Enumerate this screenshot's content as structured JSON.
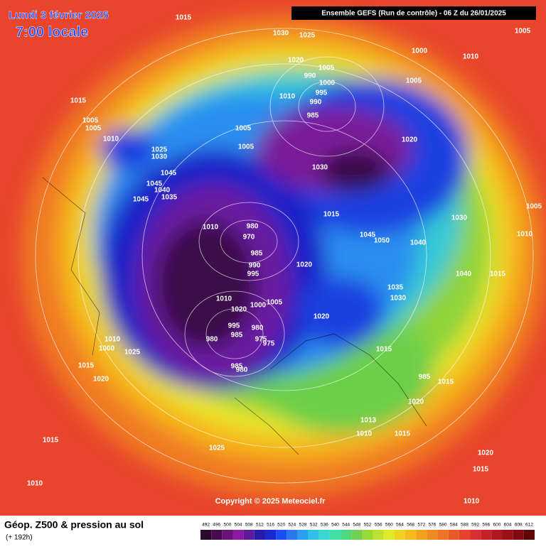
{
  "header": {
    "date": "Lundi 3 février 2025",
    "time": "7:00 locale",
    "run": "Ensemble GEFS  (Run de contrôle)  -  06 Z du 26/01/2025"
  },
  "copyright": "Copyright © 2025 Meteociel.fr",
  "footer": {
    "title": "Géop. Z500 & pression au sol",
    "lead": "(+ 192h)"
  },
  "colorbar": {
    "ticks": [
      492,
      496,
      500,
      504,
      508,
      512,
      516,
      520,
      524,
      528,
      532,
      536,
      540,
      544,
      548,
      552,
      556,
      560,
      564,
      568,
      572,
      576,
      580,
      584,
      588,
      592,
      596,
      600,
      604,
      608,
      612
    ]
  },
  "isobar_labels": [
    1015,
    1030,
    1025,
    1005,
    1000,
    1010,
    1020,
    1005,
    990,
    1000,
    1005,
    995,
    990,
    1010,
    985,
    1015,
    1005,
    1005,
    1010,
    1005,
    1005,
    1020,
    1025,
    1030,
    1030,
    1045,
    1045,
    1040,
    1035,
    1045,
    1005,
    1015,
    1030,
    1010,
    980,
    970,
    1045,
    1050,
    1040,
    1010,
    985,
    990,
    995,
    1020,
    1040,
    1015,
    1035,
    1010,
    1030,
    1020,
    1000,
    1005,
    1020,
    995,
    980,
    985,
    975,
    975,
    1010,
    980,
    1000,
    1025,
    1015,
    1015,
    985,
    980,
    985,
    1015,
    1020,
    1020,
    1015,
    1025,
    1013,
    1010,
    1015,
    1020,
    1015,
    1010,
    1010
  ]
}
